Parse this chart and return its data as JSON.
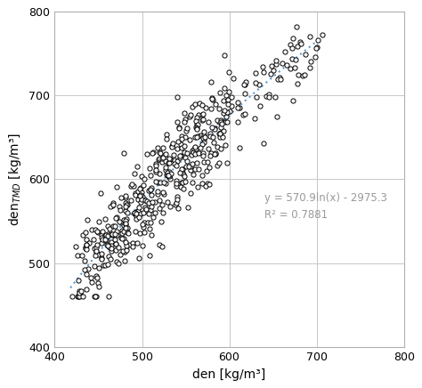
{
  "xlabel": "den [kg/m³]",
  "ylabel": "den$_{TMD}$ [kg/m³]",
  "xlim": [
    400,
    800
  ],
  "ylim": [
    400,
    800
  ],
  "xticks": [
    400,
    500,
    600,
    700,
    800
  ],
  "yticks": [
    400,
    500,
    600,
    700,
    800
  ],
  "equation": "y = 570.9ln(x) - 2975.3",
  "r_squared": "R² = 0.7881",
  "fit_a": 570.9,
  "fit_b": -2975.3,
  "fit_xmin": 418,
  "fit_xmax": 705,
  "dot_facecolor": "white",
  "dot_edgecolor": "black",
  "dot_size": 14,
  "dot_linewidth": 0.7,
  "line_color": "#5B9BD5",
  "line_width": 1.5,
  "annotation_color": "#999999",
  "annotation_fontsize": 8.5,
  "grid_color": "#C8C8C8",
  "background_color": "#ffffff",
  "clusters": [
    {
      "x": 430,
      "sx": 4,
      "n": 18,
      "sy": 28
    },
    {
      "x": 435,
      "sx": 3,
      "n": 12,
      "sy": 25
    },
    {
      "x": 445,
      "sx": 3,
      "n": 8,
      "sy": 22
    },
    {
      "x": 450,
      "sx": 3,
      "n": 20,
      "sy": 26
    },
    {
      "x": 455,
      "sx": 3,
      "n": 8,
      "sy": 22
    },
    {
      "x": 460,
      "sx": 3,
      "n": 10,
      "sy": 24
    },
    {
      "x": 465,
      "sx": 3,
      "n": 18,
      "sy": 26
    },
    {
      "x": 470,
      "sx": 3,
      "n": 10,
      "sy": 24
    },
    {
      "x": 475,
      "sx": 3,
      "n": 12,
      "sy": 26
    },
    {
      "x": 480,
      "sx": 3,
      "n": 20,
      "sy": 28
    },
    {
      "x": 485,
      "sx": 3,
      "n": 10,
      "sy": 24
    },
    {
      "x": 490,
      "sx": 3,
      "n": 12,
      "sy": 26
    },
    {
      "x": 495,
      "sx": 3,
      "n": 10,
      "sy": 24
    },
    {
      "x": 500,
      "sx": 3,
      "n": 22,
      "sy": 28
    },
    {
      "x": 505,
      "sx": 3,
      "n": 8,
      "sy": 22
    },
    {
      "x": 510,
      "sx": 3,
      "n": 18,
      "sy": 30
    },
    {
      "x": 515,
      "sx": 3,
      "n": 8,
      "sy": 24
    },
    {
      "x": 520,
      "sx": 3,
      "n": 18,
      "sy": 30
    },
    {
      "x": 525,
      "sx": 3,
      "n": 14,
      "sy": 28
    },
    {
      "x": 530,
      "sx": 3,
      "n": 14,
      "sy": 28
    },
    {
      "x": 535,
      "sx": 3,
      "n": 10,
      "sy": 26
    },
    {
      "x": 540,
      "sx": 3,
      "n": 20,
      "sy": 32
    },
    {
      "x": 545,
      "sx": 3,
      "n": 10,
      "sy": 26
    },
    {
      "x": 550,
      "sx": 3,
      "n": 16,
      "sy": 30
    },
    {
      "x": 555,
      "sx": 3,
      "n": 10,
      "sy": 26
    },
    {
      "x": 560,
      "sx": 3,
      "n": 18,
      "sy": 32
    },
    {
      "x": 565,
      "sx": 3,
      "n": 10,
      "sy": 26
    },
    {
      "x": 570,
      "sx": 3,
      "n": 14,
      "sy": 28
    },
    {
      "x": 575,
      "sx": 3,
      "n": 10,
      "sy": 26
    },
    {
      "x": 580,
      "sx": 3,
      "n": 16,
      "sy": 30
    },
    {
      "x": 585,
      "sx": 3,
      "n": 10,
      "sy": 26
    },
    {
      "x": 590,
      "sx": 3,
      "n": 14,
      "sy": 28
    },
    {
      "x": 595,
      "sx": 3,
      "n": 8,
      "sy": 24
    },
    {
      "x": 600,
      "sx": 3,
      "n": 14,
      "sy": 28
    },
    {
      "x": 610,
      "sx": 3,
      "n": 6,
      "sy": 22
    },
    {
      "x": 620,
      "sx": 4,
      "n": 5,
      "sy": 22
    },
    {
      "x": 630,
      "sx": 4,
      "n": 5,
      "sy": 22
    },
    {
      "x": 640,
      "sx": 4,
      "n": 5,
      "sy": 22
    },
    {
      "x": 650,
      "sx": 4,
      "n": 8,
      "sy": 25
    },
    {
      "x": 660,
      "sx": 4,
      "n": 5,
      "sy": 22
    },
    {
      "x": 670,
      "sx": 4,
      "n": 8,
      "sy": 25
    },
    {
      "x": 680,
      "sx": 4,
      "n": 8,
      "sy": 25
    },
    {
      "x": 690,
      "sx": 4,
      "n": 6,
      "sy": 22
    },
    {
      "x": 700,
      "sx": 3,
      "n": 5,
      "sy": 20
    }
  ]
}
